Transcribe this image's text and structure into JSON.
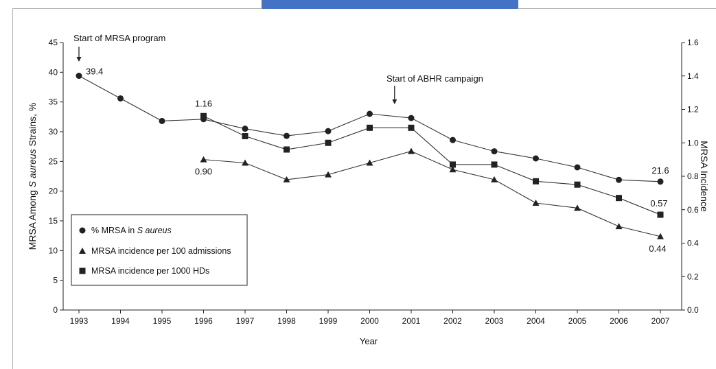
{
  "chart_data": {
    "type": "line",
    "x": [
      1993,
      1994,
      1995,
      1996,
      1997,
      1998,
      1999,
      2000,
      2001,
      2002,
      2003,
      2004,
      2005,
      2006,
      2007
    ],
    "xlabel": "Year",
    "ylabel_left": "MRSA Among S aureus Strains, %",
    "ylabel_left_parts": [
      "MRSA Among ",
      "S aureus",
      " Strains, %"
    ],
    "ylabel_right": "MRSA Incidence",
    "ylim_left": [
      0,
      45
    ],
    "ylim_right": [
      0.0,
      1.6
    ],
    "yticks_left": [
      "0",
      "5",
      "10",
      "15",
      "20",
      "25",
      "30",
      "35",
      "40",
      "45"
    ],
    "yticks_right": [
      "0.0",
      "0.2",
      "0.4",
      "0.6",
      "0.8",
      "1.0",
      "1.2",
      "1.4",
      "1.6"
    ],
    "series": [
      {
        "name": "% MRSA in S aureus",
        "name_parts": [
          "% MRSA in ",
          "S aureus"
        ],
        "axis": "left",
        "marker": "circle",
        "values": [
          39.4,
          35.6,
          31.8,
          32.1,
          30.5,
          29.3,
          30.1,
          33.0,
          32.3,
          28.6,
          26.7,
          25.5,
          24.0,
          21.9,
          21.6
        ]
      },
      {
        "name": "MRSA incidence per 100 admissions",
        "axis": "right",
        "marker": "triangle",
        "values": [
          null,
          null,
          null,
          0.9,
          0.88,
          0.78,
          0.81,
          0.88,
          0.95,
          0.84,
          0.78,
          0.64,
          0.61,
          0.5,
          0.44
        ]
      },
      {
        "name": "MRSA incidence per 1000 HDs",
        "axis": "right",
        "marker": "square",
        "values": [
          null,
          null,
          null,
          1.16,
          1.04,
          0.96,
          1.0,
          1.09,
          1.09,
          0.87,
          0.87,
          0.77,
          0.75,
          0.67,
          0.57
        ]
      }
    ],
    "data_labels": [
      {
        "series": 0,
        "x": 1993,
        "text": "39.4"
      },
      {
        "series": 0,
        "x": 2007,
        "text": "21.6"
      },
      {
        "series": 2,
        "x": 1996,
        "text": "1.16"
      },
      {
        "series": 1,
        "x": 1996,
        "text": "0.90"
      },
      {
        "series": 2,
        "x": 2007,
        "text": "0.57"
      },
      {
        "series": 1,
        "x": 2007,
        "text": "0.44"
      }
    ],
    "annotations": [
      {
        "text": "Start of MRSA program",
        "x": 1993
      },
      {
        "text": "Start of ABHR campaign",
        "x": 2000.6
      }
    ],
    "legend_position": "bottom-left",
    "grid": false
  },
  "colors": {
    "banner": "#4472c4",
    "ink": "#222222"
  }
}
